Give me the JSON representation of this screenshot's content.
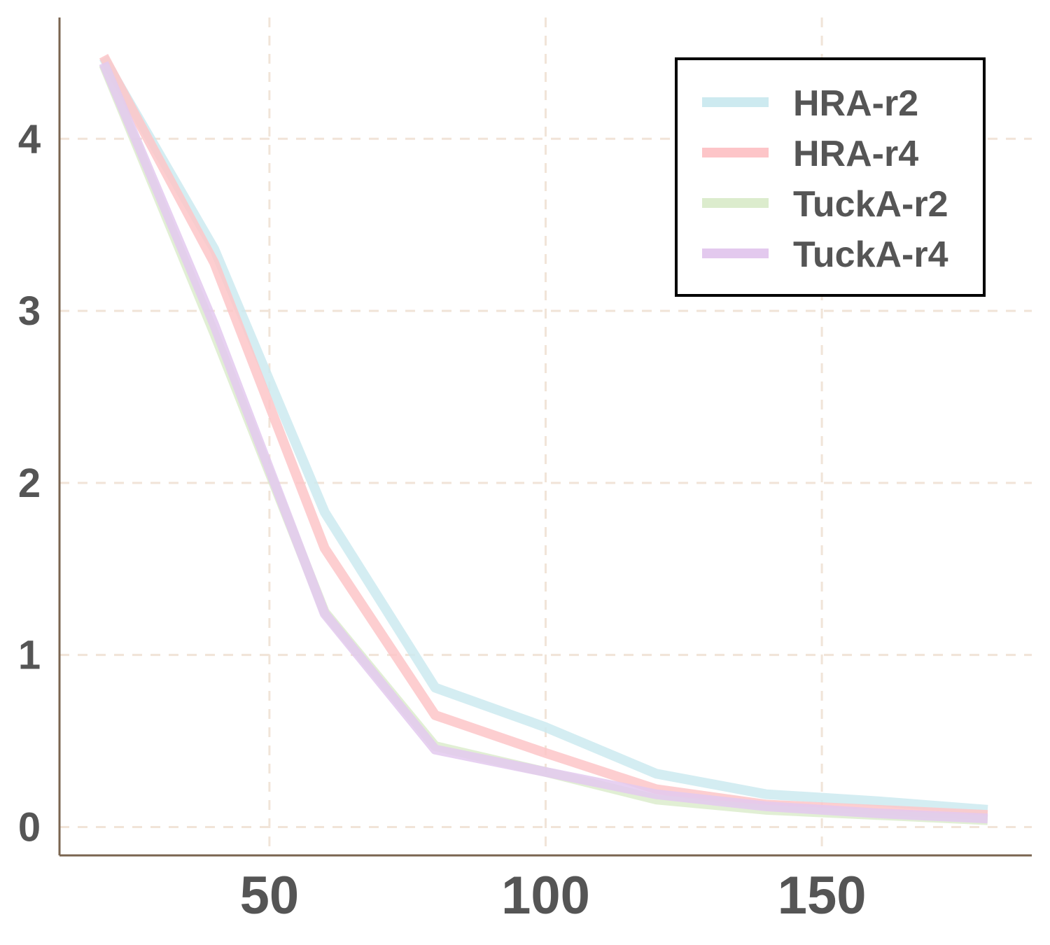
{
  "chart_data": {
    "type": "line",
    "title": "",
    "xlabel": "",
    "ylabel": "",
    "xlim": [
      12,
      188
    ],
    "ylim": [
      -0.165,
      4.705
    ],
    "x_ticks": [
      50,
      100,
      150
    ],
    "y_ticks": [
      0,
      1,
      2,
      3,
      4
    ],
    "grid": true,
    "legend_position": "top-right",
    "x": [
      20,
      40,
      60,
      80,
      100,
      120,
      140,
      160,
      180
    ],
    "series": [
      {
        "name": "HRA-r2",
        "color": "#cdeaf0",
        "values": [
          4.47,
          3.36,
          1.83,
          0.81,
          0.58,
          0.31,
          0.19,
          0.15,
          0.1
        ]
      },
      {
        "name": "HRA-r4",
        "color": "#fdc5c8",
        "values": [
          4.48,
          3.28,
          1.62,
          0.65,
          0.43,
          0.22,
          0.13,
          0.1,
          0.07
        ]
      },
      {
        "name": "TuckA-r2",
        "color": "#dceccd",
        "values": [
          4.43,
          2.87,
          1.25,
          0.47,
          0.32,
          0.16,
          0.1,
          0.07,
          0.04
        ]
      },
      {
        "name": "TuckA-r4",
        "color": "#e3c9ee",
        "values": [
          4.44,
          2.92,
          1.24,
          0.45,
          0.32,
          0.19,
          0.12,
          0.08,
          0.05
        ]
      }
    ]
  }
}
